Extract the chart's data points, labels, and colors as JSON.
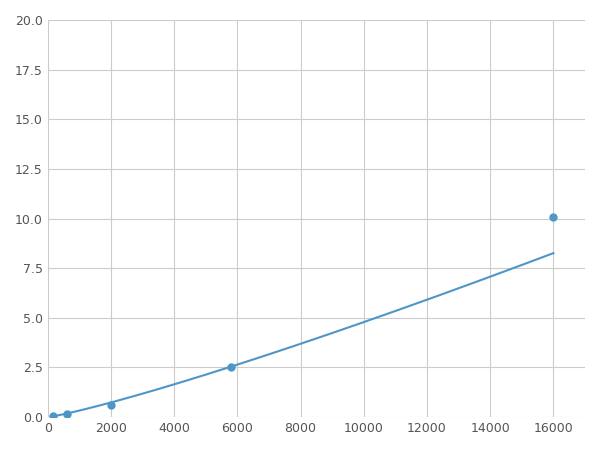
{
  "x": [
    156,
    625,
    2000,
    5800,
    16000
  ],
  "y": [
    0.05,
    0.15,
    0.6,
    2.5,
    10.1
  ],
  "line_color": "#4e96c8",
  "marker_color": "#4e96c8",
  "marker_size": 5,
  "xlim": [
    0,
    17000
  ],
  "ylim": [
    0,
    20
  ],
  "xticks": [
    0,
    2000,
    4000,
    6000,
    8000,
    10000,
    12000,
    14000,
    16000
  ],
  "yticks": [
    0.0,
    2.5,
    5.0,
    7.5,
    10.0,
    12.5,
    15.0,
    17.5,
    20.0
  ],
  "grid": true,
  "background_color": "#ffffff",
  "figsize": [
    6.0,
    4.5
  ],
  "dpi": 100
}
